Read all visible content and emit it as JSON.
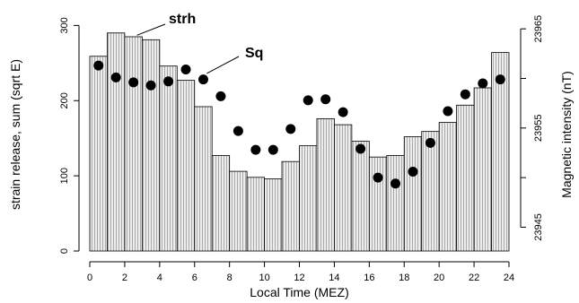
{
  "chart_data": {
    "type": "bar",
    "title": "",
    "xlabel": "Local Time (MEZ)",
    "ylabel": "strain release, sum (sqrt E)",
    "y2label": "Magnetic intensity (nT)",
    "xlim": [
      0,
      24
    ],
    "ylim": [
      0,
      310
    ],
    "y2lim": [
      23942.6,
      23966.1
    ],
    "xticks": [
      "0",
      "2",
      "4",
      "6",
      "8",
      "10",
      "12",
      "14",
      "16",
      "18",
      "20",
      "22",
      "24"
    ],
    "yticks": [
      "0",
      "100",
      "200",
      "300"
    ],
    "y2ticks": [
      "23945",
      "23955",
      "23965"
    ],
    "y2minorticks": [
      23950,
      23960
    ],
    "grid": false,
    "legend": "none",
    "series": [
      {
        "name": "strh",
        "type": "bar",
        "color": "#d9d9d9",
        "x": [
          0.5,
          1.5,
          2.5,
          3.5,
          4.5,
          5.5,
          6.5,
          7.5,
          8.5,
          9.5,
          10.5,
          11.5,
          12.5,
          13.5,
          14.5,
          15.5,
          16.5,
          17.5,
          18.5,
          19.5,
          20.5,
          21.5,
          22.5,
          23.5
        ],
        "values": [
          259,
          290,
          285,
          281,
          246,
          227,
          192,
          127,
          106,
          98,
          96,
          119,
          140,
          176,
          168,
          146,
          125,
          127,
          152,
          159,
          171,
          194,
          217,
          264
        ]
      },
      {
        "name": "Sq",
        "type": "scatter",
        "color": "#000000",
        "x": [
          0.5,
          1.5,
          2.5,
          3.5,
          4.5,
          5.5,
          6.5,
          7.5,
          8.5,
          9.5,
          10.5,
          11.5,
          12.5,
          13.5,
          14.5,
          15.5,
          16.5,
          17.5,
          18.5,
          19.5,
          20.5,
          21.5,
          22.5,
          23.5
        ],
        "values": [
          23961.3,
          23960.1,
          23959.6,
          23959.3,
          23959.7,
          23960.9,
          23959.9,
          23958.2,
          23954.7,
          23952.8,
          23952.8,
          23954.9,
          23957.8,
          23957.9,
          23956.6,
          23952.9,
          23950.0,
          23949.4,
          23950.6,
          23953.5,
          23956.7,
          23958.4,
          23959.5,
          23959.9
        ]
      }
    ],
    "annotations": [
      {
        "text": "strh",
        "points_to": "strh",
        "near_x": 2.7,
        "near_y": 287
      },
      {
        "text": "Sq",
        "points_to": "Sq",
        "near_x": 6.7,
        "near_y": 23960.5
      }
    ]
  }
}
